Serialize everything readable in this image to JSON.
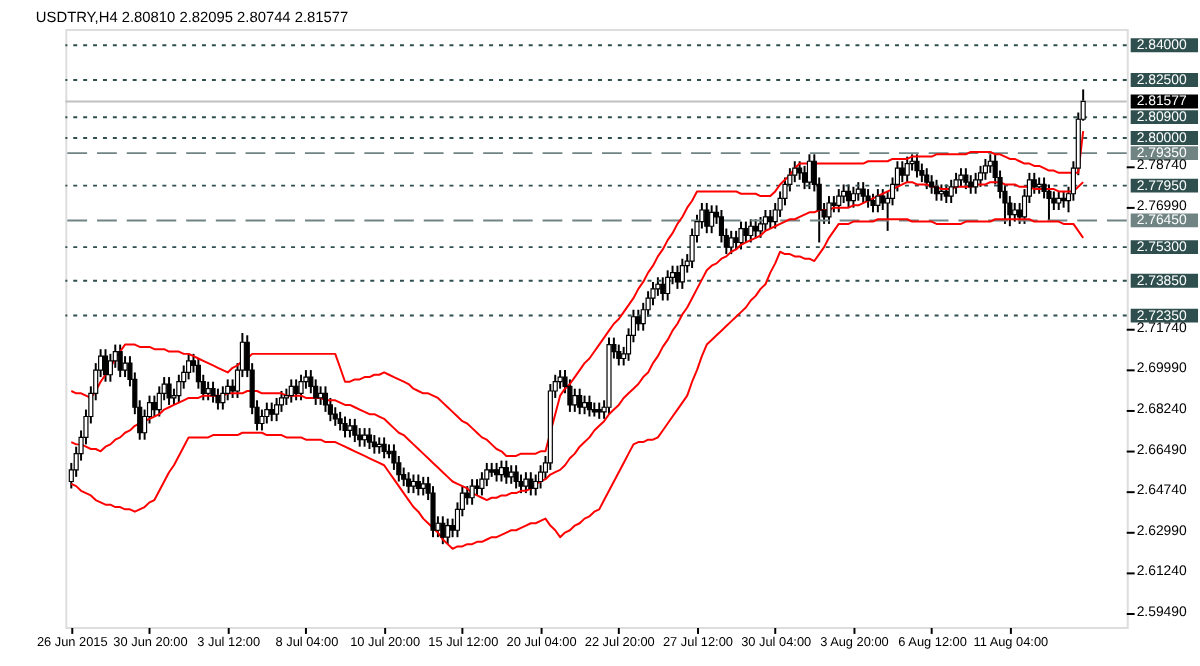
{
  "chart_data": {
    "type": "candlestick",
    "title": "USDTRY,H4  2.80810 2.82095 2.80744 2.81577",
    "color": "#000000",
    "categories": [
      "26 Jun 2015",
      null,
      null,
      null,
      null,
      null,
      null,
      null,
      null,
      null,
      null,
      null,
      null,
      null,
      null,
      null,
      "30 Jun 20:00",
      null,
      null,
      null,
      null,
      null,
      null,
      null,
      null,
      null,
      null,
      null,
      null,
      null,
      null,
      null,
      "3 Jul 12:00",
      null,
      null,
      null,
      null,
      null,
      null,
      null,
      null,
      null,
      null,
      null,
      null,
      null,
      null,
      null,
      "8 Jul 04:00",
      null,
      null,
      null,
      null,
      null,
      null,
      null,
      null,
      null,
      null,
      null,
      null,
      null,
      null,
      null,
      "10 Jul 20:00",
      null,
      null,
      null,
      null,
      null,
      null,
      null,
      null,
      null,
      null,
      null,
      null,
      null,
      null,
      null,
      "15 Jul 12:00",
      null,
      null,
      null,
      null,
      null,
      null,
      null,
      null,
      null,
      null,
      null,
      null,
      null,
      null,
      null,
      "20 Jul 04:00",
      null,
      null,
      null,
      null,
      null,
      null,
      null,
      null,
      null,
      null,
      null,
      null,
      null,
      null,
      null,
      "22 Jul 20:00",
      null,
      null,
      null,
      null,
      null,
      null,
      null,
      null,
      null,
      null,
      null,
      null,
      null,
      null,
      null,
      "27 Jul 12:00",
      null,
      null,
      null,
      null,
      null,
      null,
      null,
      null,
      null,
      null,
      null,
      null,
      null,
      null,
      null,
      "30 Jul 04:00",
      null,
      null,
      null,
      null,
      null,
      null,
      null,
      null,
      null,
      null,
      null,
      null,
      null,
      null,
      null,
      "3 Aug 20:00",
      null,
      null,
      null,
      null,
      null,
      null,
      null,
      null,
      null,
      null,
      null,
      null,
      null,
      null,
      null,
      "6 Aug 12:00",
      null,
      null,
      null,
      null,
      null,
      null,
      null,
      null,
      null,
      null,
      null,
      null,
      null,
      null,
      null,
      "11 Aug 04:00",
      null,
      null,
      null,
      null,
      null,
      null,
      null,
      null,
      null,
      null,
      null,
      null,
      null,
      null,
      null
    ],
    "ohlc": [
      [
        2.652,
        2.66,
        2.649,
        2.657
      ],
      [
        2.657,
        2.667,
        2.654,
        2.664
      ],
      [
        2.664,
        2.674,
        2.661,
        2.671
      ],
      [
        2.671,
        2.683,
        2.668,
        2.68
      ],
      [
        2.68,
        2.693,
        2.677,
        2.69
      ],
      [
        2.69,
        2.703,
        2.687,
        2.7
      ],
      [
        2.7,
        2.709,
        2.697,
        2.706
      ],
      [
        2.706,
        2.709,
        2.695,
        2.698
      ],
      [
        2.698,
        2.707,
        2.695,
        2.704
      ],
      [
        2.704,
        2.711,
        2.701,
        2.708
      ],
      [
        2.708,
        2.711,
        2.697,
        2.7
      ],
      [
        2.7,
        2.706,
        2.697,
        2.703
      ],
      [
        2.703,
        2.706,
        2.693,
        2.696
      ],
      [
        2.696,
        2.699,
        2.681,
        2.684
      ],
      [
        2.684,
        2.687,
        2.67,
        2.673
      ],
      [
        2.673,
        2.683,
        2.67,
        2.68
      ],
      [
        2.68,
        2.689,
        2.677,
        2.686
      ],
      [
        2.686,
        2.689,
        2.68,
        2.683
      ],
      [
        2.683,
        2.693,
        2.68,
        2.69
      ],
      [
        2.69,
        2.697,
        2.687,
        2.694
      ],
      [
        2.694,
        2.697,
        2.685,
        2.688
      ],
      [
        2.688,
        2.692,
        2.685,
        2.689
      ],
      [
        2.689,
        2.698,
        2.686,
        2.695
      ],
      [
        2.695,
        2.702,
        2.692,
        2.699
      ],
      [
        2.699,
        2.707,
        2.696,
        2.704
      ],
      [
        2.704,
        2.707,
        2.699,
        2.702
      ],
      [
        2.702,
        2.705,
        2.692,
        2.695
      ],
      [
        2.695,
        2.698,
        2.687,
        2.69
      ],
      [
        2.69,
        2.695,
        2.687,
        2.692
      ],
      [
        2.692,
        2.695,
        2.686,
        2.689
      ],
      [
        2.689,
        2.692,
        2.683,
        2.686
      ],
      [
        2.686,
        2.693,
        2.683,
        2.69
      ],
      [
        2.69,
        2.696,
        2.687,
        2.693
      ],
      [
        2.693,
        2.696,
        2.688,
        2.691
      ],
      [
        2.691,
        2.703,
        2.688,
        2.7
      ],
      [
        2.7,
        2.716,
        2.697,
        2.712
      ],
      [
        2.712,
        2.715,
        2.697,
        2.7
      ],
      [
        2.7,
        2.703,
        2.681,
        2.684
      ],
      [
        2.684,
        2.687,
        2.674,
        2.677
      ],
      [
        2.677,
        2.683,
        2.674,
        2.68
      ],
      [
        2.68,
        2.686,
        2.677,
        2.683
      ],
      [
        2.683,
        2.686,
        2.678,
        2.681
      ],
      [
        2.681,
        2.688,
        2.678,
        2.685
      ],
      [
        2.685,
        2.691,
        2.682,
        2.688
      ],
      [
        2.688,
        2.692,
        2.685,
        2.689
      ],
      [
        2.689,
        2.696,
        2.686,
        2.693
      ],
      [
        2.693,
        2.696,
        2.687,
        2.69
      ],
      [
        2.69,
        2.698,
        2.687,
        2.695
      ],
      [
        2.695,
        2.7,
        2.692,
        2.697
      ],
      [
        2.697,
        2.7,
        2.69,
        2.693
      ],
      [
        2.693,
        2.696,
        2.685,
        2.688
      ],
      [
        2.688,
        2.693,
        2.685,
        2.69
      ],
      [
        2.69,
        2.693,
        2.682,
        2.685
      ],
      [
        2.685,
        2.688,
        2.678,
        2.681
      ],
      [
        2.681,
        2.684,
        2.676,
        2.679
      ],
      [
        2.679,
        2.682,
        2.674,
        2.677
      ],
      [
        2.677,
        2.68,
        2.671,
        2.674
      ],
      [
        2.674,
        2.679,
        2.671,
        2.676
      ],
      [
        2.676,
        2.679,
        2.669,
        2.672
      ],
      [
        2.672,
        2.675,
        2.667,
        2.67
      ],
      [
        2.67,
        2.675,
        2.667,
        2.672
      ],
      [
        2.672,
        2.675,
        2.666,
        2.669
      ],
      [
        2.669,
        2.672,
        2.664,
        2.667
      ],
      [
        2.667,
        2.671,
        2.664,
        2.668
      ],
      [
        2.668,
        2.671,
        2.662,
        2.665
      ],
      [
        2.665,
        2.668,
        2.662,
        2.664
      ],
      [
        2.665,
        2.668,
        2.657,
        2.66
      ],
      [
        2.66,
        2.663,
        2.652,
        2.655
      ],
      [
        2.655,
        2.658,
        2.65,
        2.653
      ],
      [
        2.653,
        2.656,
        2.647,
        2.65
      ],
      [
        2.65,
        2.655,
        2.647,
        2.652
      ],
      [
        2.652,
        2.655,
        2.646,
        2.649
      ],
      [
        2.649,
        2.654,
        2.646,
        2.651
      ],
      [
        2.651,
        2.654,
        2.644,
        2.647
      ],
      [
        2.647,
        2.65,
        2.628,
        2.631
      ],
      [
        2.631,
        2.637,
        2.628,
        2.634
      ],
      [
        2.634,
        2.637,
        2.625,
        2.628
      ],
      [
        2.628,
        2.636,
        2.625,
        2.633
      ],
      [
        2.633,
        2.636,
        2.628,
        2.631
      ],
      [
        2.631,
        2.643,
        2.628,
        2.64
      ],
      [
        2.64,
        2.65,
        2.637,
        2.647
      ],
      [
        2.647,
        2.65,
        2.642,
        2.645
      ],
      [
        2.645,
        2.653,
        2.642,
        2.65
      ],
      [
        2.65,
        2.653,
        2.646,
        2.649
      ],
      [
        2.649,
        2.656,
        2.646,
        2.653
      ],
      [
        2.653,
        2.66,
        2.65,
        2.657
      ],
      [
        2.657,
        2.66,
        2.654,
        2.656
      ],
      [
        2.657,
        2.66,
        2.652,
        2.655
      ],
      [
        2.655,
        2.661,
        2.652,
        2.658
      ],
      [
        2.658,
        2.661,
        2.651,
        2.654
      ],
      [
        2.654,
        2.659,
        2.651,
        2.656
      ],
      [
        2.656,
        2.659,
        2.649,
        2.652
      ],
      [
        2.652,
        2.655,
        2.647,
        2.65
      ],
      [
        2.65,
        2.656,
        2.647,
        2.653
      ],
      [
        2.653,
        2.656,
        2.646,
        2.649
      ],
      [
        2.649,
        2.655,
        2.646,
        2.652
      ],
      [
        2.652,
        2.659,
        2.649,
        2.656
      ],
      [
        2.656,
        2.663,
        2.653,
        2.66
      ],
      [
        2.66,
        2.694,
        2.657,
        2.691
      ],
      [
        2.691,
        2.698,
        2.688,
        2.695
      ],
      [
        2.695,
        2.7,
        2.692,
        2.697
      ],
      [
        2.697,
        2.7,
        2.69,
        2.693
      ],
      [
        2.693,
        2.696,
        2.682,
        2.685
      ],
      [
        2.685,
        2.692,
        2.682,
        2.689
      ],
      [
        2.689,
        2.692,
        2.681,
        2.684
      ],
      [
        2.684,
        2.689,
        2.681,
        2.686
      ],
      [
        2.686,
        2.689,
        2.68,
        2.683
      ],
      [
        2.683,
        2.686,
        2.68,
        2.682
      ],
      [
        2.683,
        2.686,
        2.679,
        2.682
      ],
      [
        2.682,
        2.687,
        2.679,
        2.684
      ],
      [
        2.684,
        2.714,
        2.681,
        2.711
      ],
      [
        2.711,
        2.714,
        2.705,
        2.708
      ],
      [
        2.708,
        2.711,
        2.702,
        2.705
      ],
      [
        2.705,
        2.71,
        2.702,
        2.707
      ],
      [
        2.707,
        2.718,
        2.704,
        2.715
      ],
      [
        2.715,
        2.726,
        2.712,
        2.723
      ],
      [
        2.723,
        2.726,
        2.717,
        2.72
      ],
      [
        2.72,
        2.729,
        2.717,
        2.726
      ],
      [
        2.726,
        2.734,
        2.723,
        2.731
      ],
      [
        2.731,
        2.738,
        2.728,
        2.735
      ],
      [
        2.735,
        2.74,
        2.732,
        2.737
      ],
      [
        2.737,
        2.74,
        2.73,
        2.733
      ],
      [
        2.733,
        2.743,
        2.73,
        2.74
      ],
      [
        2.74,
        2.745,
        2.737,
        2.742
      ],
      [
        2.742,
        2.745,
        2.735,
        2.738
      ],
      [
        2.738,
        2.748,
        2.735,
        2.745
      ],
      [
        2.745,
        2.75,
        2.742,
        2.747
      ],
      [
        2.747,
        2.761,
        2.744,
        2.758
      ],
      [
        2.758,
        2.767,
        2.755,
        2.764
      ],
      [
        2.764,
        2.772,
        2.761,
        2.769
      ],
      [
        2.769,
        2.772,
        2.759,
        2.762
      ],
      [
        2.762,
        2.771,
        2.759,
        2.768
      ],
      [
        2.768,
        2.771,
        2.763,
        2.766
      ],
      [
        2.766,
        2.769,
        2.755,
        2.758
      ],
      [
        2.758,
        2.761,
        2.75,
        2.753
      ],
      [
        2.753,
        2.76,
        2.75,
        2.757
      ],
      [
        2.757,
        2.76,
        2.752,
        2.755
      ],
      [
        2.755,
        2.764,
        2.752,
        2.761
      ],
      [
        2.761,
        2.764,
        2.755,
        2.758
      ],
      [
        2.758,
        2.765,
        2.755,
        2.762
      ],
      [
        2.762,
        2.765,
        2.757,
        2.76
      ],
      [
        2.76,
        2.766,
        2.757,
        2.763
      ],
      [
        2.763,
        2.769,
        2.76,
        2.766
      ],
      [
        2.766,
        2.769,
        2.761,
        2.764
      ],
      [
        2.764,
        2.772,
        2.761,
        2.769
      ],
      [
        2.769,
        2.777,
        2.766,
        2.774
      ],
      [
        2.774,
        2.783,
        2.771,
        2.78
      ],
      [
        2.78,
        2.787,
        2.777,
        2.784
      ],
      [
        2.784,
        2.79,
        2.781,
        2.787
      ],
      [
        2.787,
        2.79,
        2.782,
        2.785
      ],
      [
        2.785,
        2.788,
        2.778,
        2.781
      ],
      [
        2.781,
        2.793,
        2.778,
        2.79
      ],
      [
        2.79,
        2.793,
        2.777,
        2.78
      ],
      [
        2.78,
        2.783,
        2.755,
        2.769
      ],
      [
        2.769,
        2.772,
        2.763,
        2.766
      ],
      [
        2.766,
        2.775,
        2.763,
        2.772
      ],
      [
        2.772,
        2.775,
        2.768,
        2.771
      ],
      [
        2.771,
        2.778,
        2.768,
        2.775
      ],
      [
        2.775,
        2.78,
        2.772,
        2.777
      ],
      [
        2.777,
        2.78,
        2.77,
        2.773
      ],
      [
        2.773,
        2.779,
        2.77,
        2.776
      ],
      [
        2.776,
        2.781,
        2.773,
        2.778
      ],
      [
        2.778,
        2.781,
        2.772,
        2.775
      ],
      [
        2.775,
        2.778,
        2.77,
        2.773
      ],
      [
        2.773,
        2.776,
        2.768,
        2.771
      ],
      [
        2.771,
        2.778,
        2.768,
        2.775
      ],
      [
        2.775,
        2.778,
        2.769,
        2.772
      ],
      [
        2.772,
        2.777,
        2.76,
        2.774
      ],
      [
        2.774,
        2.783,
        2.771,
        2.78
      ],
      [
        2.78,
        2.79,
        2.777,
        2.787
      ],
      [
        2.787,
        2.79,
        2.781,
        2.784
      ],
      [
        2.784,
        2.792,
        2.781,
        2.789
      ],
      [
        2.789,
        2.793,
        2.786,
        2.79
      ],
      [
        2.79,
        2.793,
        2.783,
        2.786
      ],
      [
        2.786,
        2.789,
        2.781,
        2.784
      ],
      [
        2.784,
        2.787,
        2.778,
        2.781
      ],
      [
        2.781,
        2.784,
        2.776,
        2.779
      ],
      [
        2.779,
        2.782,
        2.773,
        2.776
      ],
      [
        2.776,
        2.78,
        2.773,
        2.777
      ],
      [
        2.777,
        2.78,
        2.772,
        2.775
      ],
      [
        2.775,
        2.782,
        2.772,
        2.779
      ],
      [
        2.779,
        2.785,
        2.776,
        2.782
      ],
      [
        2.782,
        2.787,
        2.779,
        2.784
      ],
      [
        2.784,
        2.787,
        2.778,
        2.781
      ],
      [
        2.781,
        2.784,
        2.776,
        2.779
      ],
      [
        2.779,
        2.785,
        2.776,
        2.782
      ],
      [
        2.782,
        2.788,
        2.779,
        2.785
      ],
      [
        2.785,
        2.791,
        2.782,
        2.788
      ],
      [
        2.788,
        2.793,
        2.785,
        2.79
      ],
      [
        2.79,
        2.793,
        2.78,
        2.783
      ],
      [
        2.783,
        2.786,
        2.774,
        2.777
      ],
      [
        2.777,
        2.78,
        2.763,
        2.772
      ],
      [
        2.772,
        2.775,
        2.762,
        2.767
      ],
      [
        2.767,
        2.772,
        2.764,
        2.769
      ],
      [
        2.769,
        2.772,
        2.763,
        2.766
      ],
      [
        2.766,
        2.778,
        2.763,
        2.775
      ],
      [
        2.775,
        2.785,
        2.772,
        2.782
      ],
      [
        2.782,
        2.785,
        2.776,
        2.779
      ],
      [
        2.779,
        2.783,
        2.776,
        2.78
      ],
      [
        2.78,
        2.783,
        2.774,
        2.777
      ],
      [
        2.777,
        2.78,
        2.764,
        2.774
      ],
      [
        2.774,
        2.777,
        2.769,
        2.772
      ],
      [
        2.772,
        2.777,
        2.769,
        2.774
      ],
      [
        2.774,
        2.777,
        2.77,
        2.773
      ],
      [
        2.773,
        2.779,
        2.768,
        2.776
      ],
      [
        2.776,
        2.79,
        2.773,
        2.787
      ],
      [
        2.787,
        2.811,
        2.784,
        2.8081
      ],
      [
        2.8081,
        2.82095,
        2.80744,
        2.81577
      ]
    ],
    "series": [
      {
        "type": "line",
        "color": "#ff0000",
        "values": [
          2.691,
          2.69,
          2.69,
          2.689,
          2.688,
          2.691,
          2.695,
          2.698,
          2.701,
          2.705,
          2.708,
          2.711,
          2.711,
          2.711,
          2.71,
          2.71,
          2.71,
          2.709,
          2.709,
          2.709,
          2.708,
          2.708,
          2.708,
          2.707,
          2.707,
          2.706,
          2.705,
          2.704,
          2.703,
          2.702,
          2.701,
          2.7,
          2.699,
          2.701,
          2.702,
          2.704,
          2.705,
          2.707,
          2.707,
          2.707,
          2.707,
          2.707,
          2.707,
          2.707,
          2.707,
          2.707,
          2.707,
          2.707,
          2.707,
          2.707,
          2.707,
          2.707,
          2.707,
          2.707,
          2.707,
          2.701,
          2.695,
          2.695,
          2.696,
          2.696,
          2.697,
          2.697,
          2.698,
          2.698,
          2.699,
          2.698,
          2.697,
          2.696,
          2.695,
          2.694,
          2.692,
          2.691,
          2.69,
          2.69,
          2.689,
          2.688,
          2.686,
          2.684,
          2.682,
          2.68,
          2.678,
          2.677,
          2.675,
          2.673,
          2.671,
          2.67,
          2.668,
          2.666,
          2.665,
          2.663,
          2.663,
          2.663,
          2.664,
          2.664,
          2.664,
          2.664,
          2.665,
          2.665,
          2.673,
          2.681,
          2.689,
          2.692,
          2.694,
          2.697,
          2.7,
          2.703,
          2.705,
          2.708,
          2.711,
          2.714,
          2.717,
          2.72,
          2.722,
          2.725,
          2.728,
          2.731,
          2.735,
          2.738,
          2.742,
          2.745,
          2.749,
          2.752,
          2.756,
          2.759,
          2.763,
          2.766,
          2.77,
          2.773,
          2.777,
          2.777,
          2.777,
          2.777,
          2.777,
          2.777,
          2.777,
          2.777,
          2.777,
          2.776,
          2.776,
          2.776,
          2.776,
          2.775,
          2.775,
          2.775,
          2.777,
          2.78,
          2.782,
          2.784,
          2.787,
          2.789,
          2.789,
          2.789,
          2.789,
          2.789,
          2.789,
          2.789,
          2.789,
          2.789,
          2.789,
          2.789,
          2.789,
          2.789,
          2.789,
          2.79,
          2.79,
          2.79,
          2.79,
          2.79,
          2.791,
          2.791,
          2.791,
          2.791,
          2.792,
          2.792,
          2.792,
          2.792,
          2.792,
          2.793,
          2.793,
          2.793,
          2.793,
          2.793,
          2.793,
          2.793,
          2.794,
          2.794,
          2.794,
          2.794,
          2.794,
          2.793,
          2.793,
          2.792,
          2.791,
          2.791,
          2.79,
          2.789,
          2.789,
          2.788,
          2.788,
          2.787,
          2.786,
          2.786,
          2.785,
          2.785,
          2.785,
          2.785,
          2.785,
          2.803
        ]
      },
      {
        "type": "line",
        "color": "#ff0000",
        "values": [
          2.669,
          2.668,
          2.668,
          2.667,
          2.666,
          2.666,
          2.665,
          2.667,
          2.668,
          2.67,
          2.671,
          2.673,
          2.674,
          2.676,
          2.677,
          2.678,
          2.679,
          2.68,
          2.681,
          2.683,
          2.684,
          2.685,
          2.686,
          2.687,
          2.688,
          2.688,
          2.688,
          2.689,
          2.689,
          2.689,
          2.689,
          2.689,
          2.69,
          2.69,
          2.69,
          2.69,
          2.691,
          2.691,
          2.691,
          2.69,
          2.69,
          2.69,
          2.69,
          2.69,
          2.689,
          2.689,
          2.689,
          2.689,
          2.688,
          2.688,
          2.688,
          2.688,
          2.687,
          2.687,
          2.687,
          2.686,
          2.685,
          2.685,
          2.684,
          2.683,
          2.682,
          2.681,
          2.681,
          2.68,
          2.679,
          2.677,
          2.675,
          2.673,
          2.672,
          2.67,
          2.668,
          2.666,
          2.664,
          2.662,
          2.66,
          2.658,
          2.656,
          2.654,
          2.652,
          2.651,
          2.65,
          2.649,
          2.647,
          2.646,
          2.645,
          2.644,
          2.645,
          2.645,
          2.646,
          2.646,
          2.647,
          2.647,
          2.648,
          2.648,
          2.649,
          2.651,
          2.652,
          2.653,
          2.655,
          2.656,
          2.657,
          2.659,
          2.662,
          2.664,
          2.667,
          2.669,
          2.671,
          2.674,
          2.676,
          2.678,
          2.681,
          2.683,
          2.685,
          2.688,
          2.69,
          2.692,
          2.694,
          2.697,
          2.699,
          2.703,
          2.706,
          2.71,
          2.713,
          2.717,
          2.72,
          2.724,
          2.727,
          2.731,
          2.735,
          2.739,
          2.743,
          2.745,
          2.746,
          2.748,
          2.749,
          2.751,
          2.752,
          2.754,
          2.755,
          2.756,
          2.757,
          2.758,
          2.76,
          2.761,
          2.762,
          2.763,
          2.764,
          2.765,
          2.765,
          2.766,
          2.767,
          2.768,
          2.768,
          2.769,
          2.769,
          2.769,
          2.77,
          2.77,
          2.77,
          2.77,
          2.771,
          2.771,
          2.772,
          2.773,
          2.774,
          2.775,
          2.776,
          2.777,
          2.778,
          2.779,
          2.78,
          2.781,
          2.781,
          2.78,
          2.78,
          2.78,
          2.779,
          2.779,
          2.778,
          2.778,
          2.778,
          2.779,
          2.779,
          2.779,
          2.779,
          2.78,
          2.78,
          2.78,
          2.781,
          2.781,
          2.781,
          2.78,
          2.78,
          2.78,
          2.779,
          2.779,
          2.779,
          2.778,
          2.778,
          2.778,
          2.778,
          2.778,
          2.777,
          2.777,
          2.777,
          2.777,
          2.779,
          2.781
        ]
      },
      {
        "type": "line",
        "color": "#ff0000",
        "values": [
          2.651,
          2.65,
          2.648,
          2.647,
          2.646,
          2.644,
          2.643,
          2.642,
          2.642,
          2.641,
          2.641,
          2.64,
          2.64,
          2.639,
          2.64,
          2.641,
          2.643,
          2.644,
          2.648,
          2.652,
          2.656,
          2.659,
          2.663,
          2.667,
          2.671,
          2.671,
          2.671,
          2.671,
          2.671,
          2.672,
          2.672,
          2.672,
          2.672,
          2.672,
          2.672,
          2.673,
          2.673,
          2.673,
          2.673,
          2.673,
          2.672,
          2.672,
          2.672,
          2.672,
          2.671,
          2.671,
          2.671,
          2.671,
          2.67,
          2.67,
          2.67,
          2.67,
          2.669,
          2.669,
          2.669,
          2.668,
          2.667,
          2.666,
          2.665,
          2.664,
          2.663,
          2.662,
          2.661,
          2.66,
          2.659,
          2.656,
          2.653,
          2.65,
          2.647,
          2.644,
          2.641,
          2.639,
          2.636,
          2.634,
          2.632,
          2.63,
          2.627,
          2.625,
          2.623,
          2.624,
          2.624,
          2.625,
          2.625,
          2.626,
          2.626,
          2.627,
          2.628,
          2.628,
          2.629,
          2.63,
          2.631,
          2.631,
          2.632,
          2.633,
          2.634,
          2.634,
          2.635,
          2.636,
          2.633,
          2.631,
          2.628,
          2.63,
          2.631,
          2.633,
          2.634,
          2.636,
          2.637,
          2.639,
          2.64,
          2.644,
          2.648,
          2.652,
          2.656,
          2.66,
          2.664,
          2.668,
          2.669,
          2.669,
          2.67,
          2.67,
          2.671,
          2.674,
          2.677,
          2.68,
          2.683,
          2.686,
          2.689,
          2.695,
          2.7,
          2.706,
          2.711,
          2.713,
          2.715,
          2.717,
          2.719,
          2.721,
          2.723,
          2.725,
          2.727,
          2.73,
          2.732,
          2.735,
          2.737,
          2.742,
          2.746,
          2.751,
          2.75,
          2.75,
          2.749,
          2.749,
          2.748,
          2.748,
          2.747,
          2.75,
          2.753,
          2.757,
          2.76,
          2.763,
          2.763,
          2.763,
          2.764,
          2.764,
          2.764,
          2.764,
          2.764,
          2.765,
          2.765,
          2.765,
          2.765,
          2.765,
          2.765,
          2.765,
          2.764,
          2.764,
          2.764,
          2.764,
          2.764,
          2.763,
          2.763,
          2.763,
          2.763,
          2.763,
          2.763,
          2.764,
          2.764,
          2.764,
          2.764,
          2.764,
          2.764,
          2.765,
          2.765,
          2.765,
          2.765,
          2.765,
          2.765,
          2.765,
          2.765,
          2.764,
          2.764,
          2.764,
          2.764,
          2.764,
          2.764,
          2.763,
          2.763,
          2.763,
          2.76,
          2.757
        ]
      }
    ],
    "ylim": [
      2.5893,
      2.847
    ],
    "yticks": [
      {
        "value": 2.5949,
        "label": "2.59490"
      },
      {
        "value": 2.6124,
        "label": "2.61240"
      },
      {
        "value": 2.6299,
        "label": "2.62990"
      },
      {
        "value": 2.6474,
        "label": "2.64740"
      },
      {
        "value": 2.6649,
        "label": "2.66490"
      },
      {
        "value": 2.6824,
        "label": "2.68240"
      },
      {
        "value": 2.6999,
        "label": "2.69990"
      },
      {
        "value": 2.7174,
        "label": "2.71740"
      },
      {
        "value": 2.7699,
        "label": "2.76990"
      },
      {
        "value": 2.7874,
        "label": "2.78740"
      }
    ],
    "ref_lines": [
      {
        "axis": "y",
        "value": 2.84,
        "label": "2.84000",
        "color": "#2f4f4f",
        "line_style": "dotted"
      },
      {
        "axis": "y",
        "value": 2.825,
        "label": "2.82500",
        "color": "#2f4f4f",
        "line_style": "dotted"
      },
      {
        "axis": "y",
        "value": 2.81577,
        "label": "2.81577",
        "color": "#c0c0c0",
        "line_style": "solid"
      },
      {
        "axis": "y",
        "value": 2.809,
        "label": "2.80900",
        "color": "#2f4f4f",
        "line_style": "dotted"
      },
      {
        "axis": "y",
        "value": 2.8,
        "label": "2.80000",
        "color": "#2f4f4f",
        "line_style": "dotted"
      },
      {
        "axis": "y",
        "value": 2.7935,
        "label": "2.79350",
        "color": "#708484",
        "line_style": "dashed"
      },
      {
        "axis": "y",
        "value": 2.7795,
        "label": "2.77950",
        "color": "#2f4f4f",
        "line_style": "dotted"
      },
      {
        "axis": "y",
        "value": 2.7645,
        "label": "2.76450",
        "color": "#708484",
        "line_style": "dashed"
      },
      {
        "axis": "y",
        "value": 2.753,
        "label": "2.75300",
        "color": "#2f4f4f",
        "line_style": "dotted"
      },
      {
        "axis": "y",
        "value": 2.7385,
        "label": "2.73850",
        "color": "#2f4f4f",
        "line_style": "dotted"
      },
      {
        "axis": "y",
        "value": 2.7235,
        "label": "2.72350",
        "color": "#2f4f4f",
        "line_style": "dotted"
      }
    ],
    "grid": false
  }
}
